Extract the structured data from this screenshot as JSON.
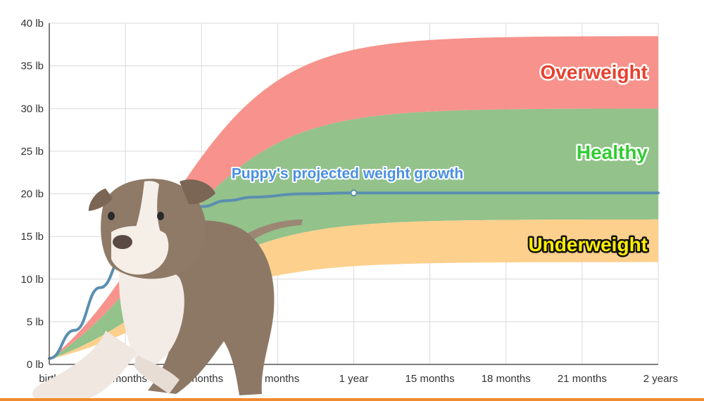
{
  "chart_data": {
    "type": "area",
    "x_ticks": [
      "birth",
      "3 months",
      "6 months",
      "9 months",
      "1 year",
      "15 months",
      "18 months",
      "21 months",
      "2 years"
    ],
    "y_ticks": [
      "0 lb",
      "5 lb",
      "10 lb",
      "15 lb",
      "20 lb",
      "25 lb",
      "30 lb",
      "35 lb",
      "40 lb"
    ],
    "xlim": [
      0,
      24
    ],
    "ylim": [
      0,
      40
    ],
    "grid": true,
    "zones": [
      {
        "name": "Overweight",
        "lower": 30,
        "upper": 38.5,
        "color": "#f7938c",
        "label_color": "#e8402e"
      },
      {
        "name": "Healthy",
        "lower": 17,
        "upper": 30,
        "color": "#93c28b",
        "label_color": "#33cc33"
      },
      {
        "name": "Underweight",
        "lower": 12,
        "upper": 17,
        "color": "#fdd08d",
        "label_color": "#ffee00"
      }
    ],
    "series": [
      {
        "name": "Puppy's projected weight growth",
        "color": "#4a90e2",
        "x": [
          0,
          1,
          2,
          3,
          4,
          5,
          6,
          7,
          8,
          10,
          12,
          15,
          18,
          21,
          24
        ],
        "y": [
          0.7,
          4,
          9,
          13,
          16,
          17.5,
          18.5,
          19.2,
          19.6,
          20.0,
          20.1,
          20.1,
          20.1,
          20.1,
          20.1
        ],
        "marker": {
          "x": 12,
          "y": 20.1
        }
      }
    ]
  },
  "colors": {
    "accent": "#f28a2e",
    "grid": "#d9d9d9",
    "axis": "#555555"
  }
}
